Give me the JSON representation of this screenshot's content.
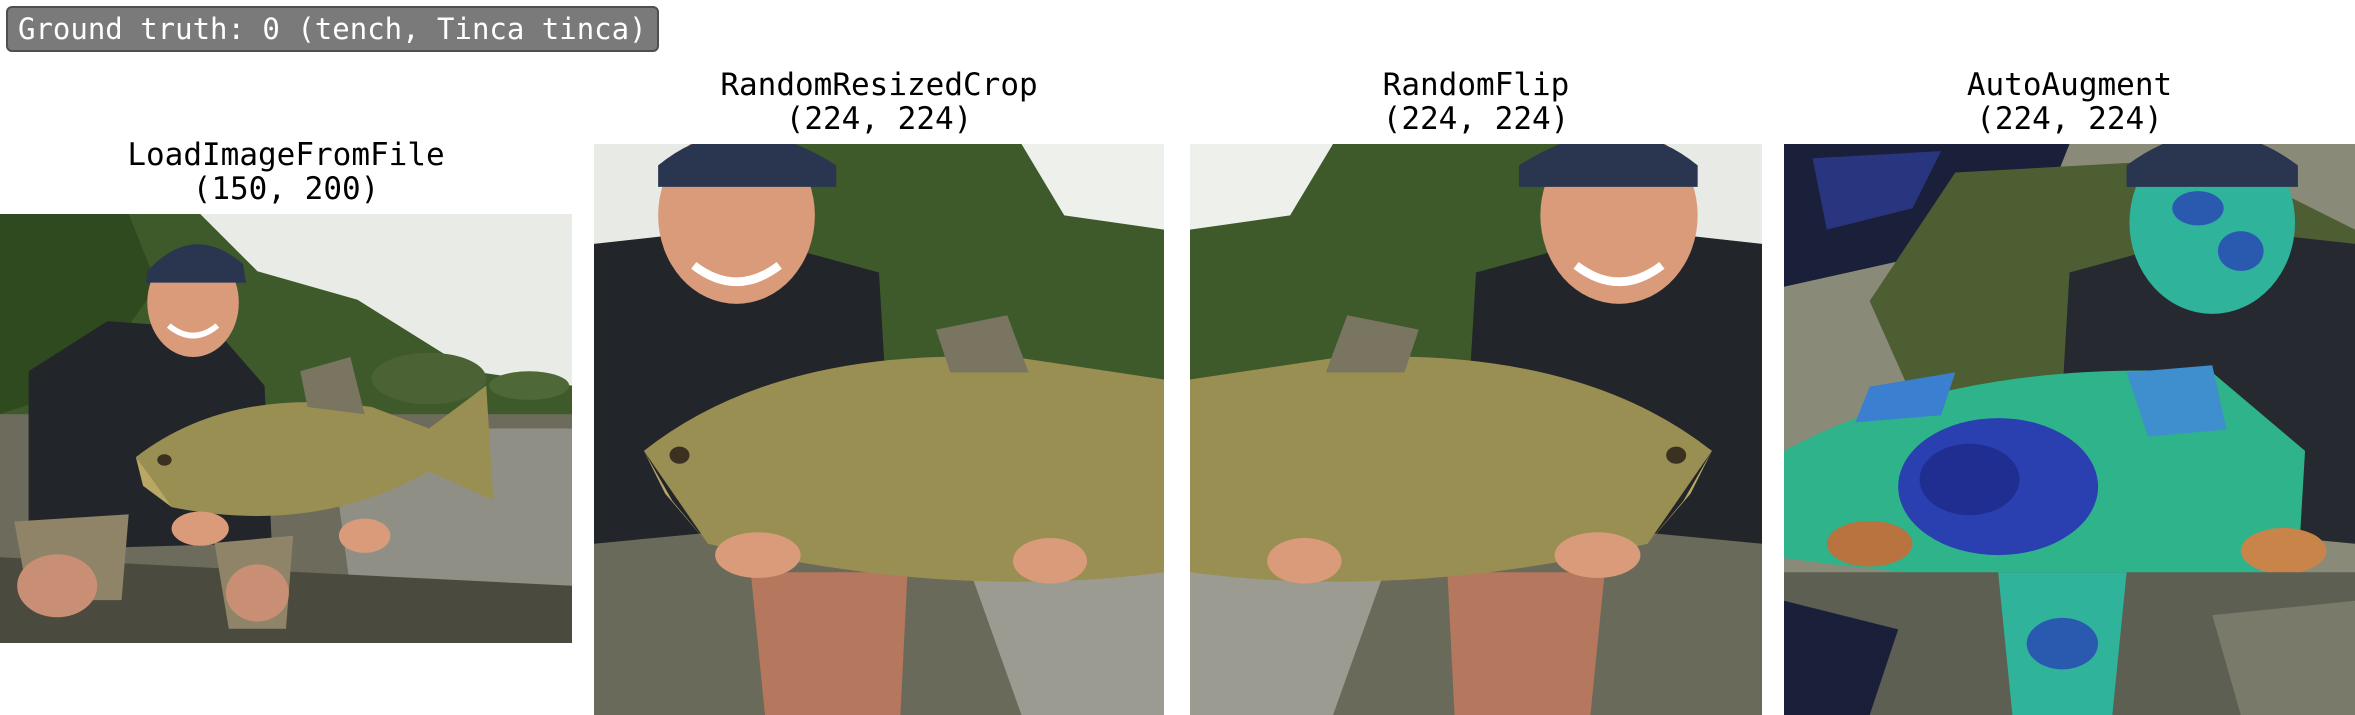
{
  "ground_truth": {
    "label": "Ground truth: 0 (tench, Tinca tinca)"
  },
  "panels": [
    {
      "name": "LoadImageFromFile",
      "shape": "(150, 200)"
    },
    {
      "name": "RandomResizedCrop",
      "shape": "(224, 224)"
    },
    {
      "name": "RandomFlip",
      "shape": "(224, 224)"
    },
    {
      "name": "AutoAugment",
      "shape": "(224, 224)"
    }
  ],
  "colors": {
    "badge_bg": "#7a7a7a",
    "foliage": "#3f5a2a",
    "sky": "#e9ece8",
    "water": "#6b6a5c",
    "fish": "#9a8f52",
    "shirt": "#22262b",
    "skin": "#d79a7a",
    "cap": "#2a3550",
    "augment_teal": "#2fb39a",
    "augment_blue": "#2a3fb0"
  }
}
